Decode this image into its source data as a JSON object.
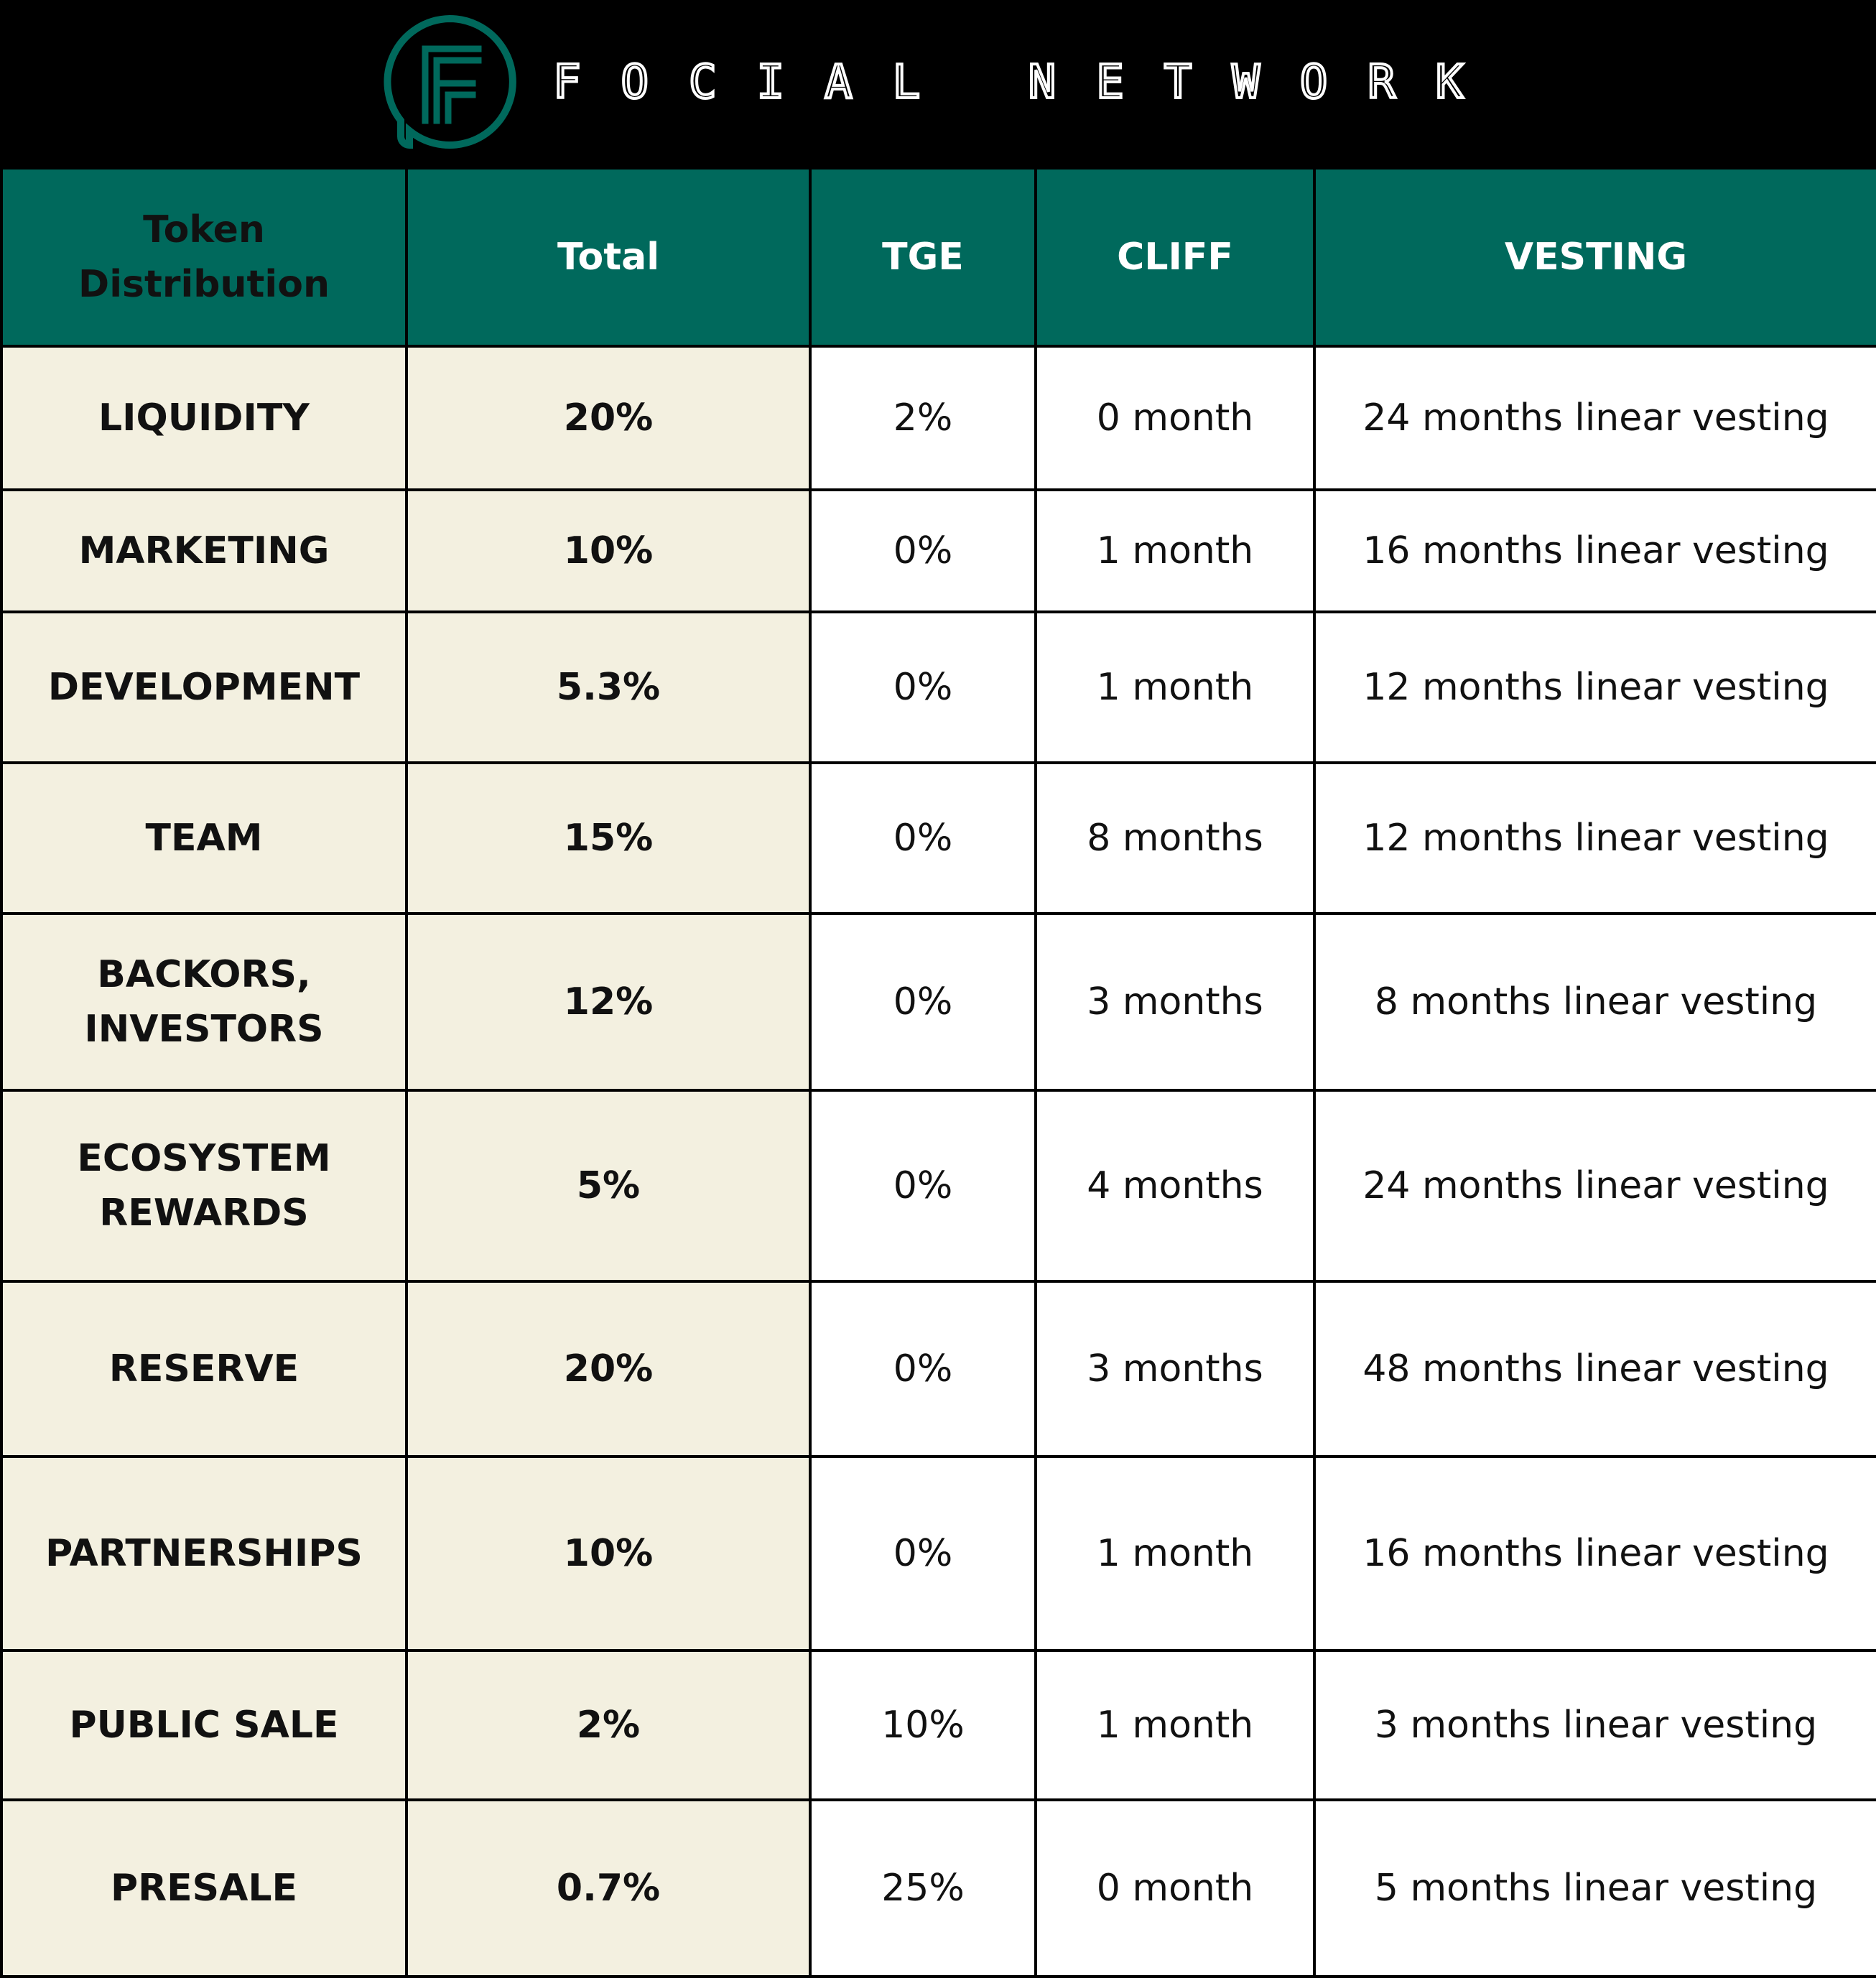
{
  "brand": {
    "name": "FOCIAL NETWORK",
    "logo": "focial-f-logo",
    "colors": {
      "accent": "#00695c",
      "header_bg": "#000000",
      "label_bg": "#f3f0e0"
    }
  },
  "table": {
    "headers": {
      "distribution": "Token Distribution",
      "total": "Total",
      "tge": "TGE",
      "cliff": "CLIFF",
      "vesting": "VESTING"
    },
    "rows": [
      {
        "label": "LIQUIDITY",
        "total": "20%",
        "tge": "2%",
        "cliff": "0 month",
        "vesting": "24 months linear vesting"
      },
      {
        "label": "MARKETING",
        "total": "10%",
        "tge": "0%",
        "cliff": "1 month",
        "vesting": "16 months linear vesting"
      },
      {
        "label": "DEVELOPMENT",
        "total": "5.3%",
        "tge": "0%",
        "cliff": "1 month",
        "vesting": "12 months linear vesting"
      },
      {
        "label": "TEAM",
        "total": "15%",
        "tge": "0%",
        "cliff": "8 months",
        "vesting": "12 months linear vesting"
      },
      {
        "label": "BACKORS, INVESTORS",
        "total": "12%",
        "tge": "0%",
        "cliff": "3 months",
        "vesting": "8 months linear vesting"
      },
      {
        "label": "ECOSYSTEM REWARDS",
        "total": "5%",
        "tge": "0%",
        "cliff": "4 months",
        "vesting": "24 months linear vesting"
      },
      {
        "label": "RESERVE",
        "total": "20%",
        "tge": "0%",
        "cliff": "3 months",
        "vesting": "48 months linear vesting"
      },
      {
        "label": "PARTNERSHIPS",
        "total": "10%",
        "tge": "0%",
        "cliff": "1 month",
        "vesting": "16 months linear vesting"
      },
      {
        "label": "PUBLIC SALE",
        "total": "2%",
        "tge": "10%",
        "cliff": "1 month",
        "vesting": "3 months linear vesting"
      },
      {
        "label": "PRESALE",
        "total": "0.7%",
        "tge": "25%",
        "cliff": "0 month",
        "vesting": "5 months linear vesting"
      }
    ]
  }
}
